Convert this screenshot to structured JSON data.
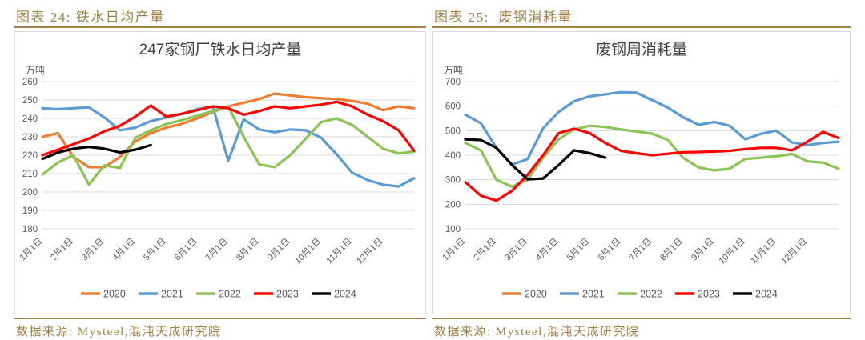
{
  "page": {
    "left_header": "图表 24: 铁水日均产量",
    "right_header": "图表 25:  废钢消耗量",
    "left_source": "数据来源: Mysteel,混沌天成研究院",
    "right_source": "数据来源: Mysteel,混沌天成研究院"
  },
  "colors": {
    "accent_gold": "#A08246",
    "grid": "#D9D9D9",
    "axis_text": "#595959",
    "title_text": "#3F3F3F",
    "panel_border": "#D9D9D9",
    "series_2020": "#ED7D31",
    "series_2021": "#5B9BD5",
    "series_2022": "#8CC355",
    "series_2023": "#FF0000",
    "series_2024": "#000000"
  },
  "chart_data": [
    {
      "type": "line",
      "title": "247家钢厂铁水日均产量",
      "unit_label": "万吨",
      "ylabel": "万吨",
      "ylim": [
        180,
        260
      ],
      "ytick_step": 10,
      "grid": true,
      "legend_position": "bottom",
      "x_tick_labels": [
        "1月1日",
        "2月1日",
        "3月1日",
        "4月1日",
        "5月1日",
        "6月1日",
        "7月1日",
        "8月1日",
        "9月1日",
        "10月1日",
        "11月1日",
        "12月1日"
      ],
      "sampling_note": "values sampled twice monthly Jan1-Dec31 (25 points); 2024 series ends mid-April",
      "series": [
        {
          "name": "2020",
          "color": "#ED7D31",
          "values": [
            230,
            232,
            219,
            213.5,
            213.5,
            219,
            227.5,
            232,
            235,
            237,
            240,
            243.5,
            246.5,
            248.5,
            250.5,
            253.5,
            252.5,
            251.5,
            251,
            250.5,
            249.5,
            248,
            244.5,
            246.5,
            245.5
          ]
        },
        {
          "name": "2021",
          "color": "#5B9BD5",
          "values": [
            245.5,
            245,
            245.5,
            246,
            240.5,
            233.5,
            235,
            238.5,
            240.5,
            242.5,
            245,
            246.5,
            217,
            239.5,
            234,
            232.5,
            234,
            233.5,
            229.5,
            220.5,
            210.5,
            206.5,
            204,
            203,
            207.5
          ]
        },
        {
          "name": "2022",
          "color": "#8CC355",
          "values": [
            209.5,
            216,
            220,
            204,
            214.5,
            213,
            229.5,
            233.5,
            237,
            239,
            241.5,
            244,
            246.5,
            230,
            215,
            213.5,
            220,
            229,
            238,
            240,
            236.5,
            230,
            223.5,
            221,
            222
          ]
        },
        {
          "name": "2023",
          "color": "#FF0000",
          "values": [
            220,
            223,
            226,
            229,
            233,
            236,
            241,
            247,
            241,
            242.5,
            244.5,
            246.5,
            245.5,
            242,
            244,
            246.5,
            245.5,
            246.5,
            247.5,
            249,
            246.5,
            242,
            238.5,
            233.5,
            222.5
          ]
        },
        {
          "name": "2024",
          "color": "#000000",
          "values": [
            218,
            221.5,
            223.5,
            224.5,
            223.5,
            221.5,
            223,
            225.5
          ]
        }
      ]
    },
    {
      "type": "line",
      "title": "废钢周消耗量",
      "unit_label": "万吨",
      "ylabel": "万吨",
      "ylim": [
        100,
        700
      ],
      "ytick_step": 100,
      "grid": true,
      "legend_position": "bottom",
      "x_tick_labels": [
        "1月1日",
        "2月1日",
        "3月1日",
        "4月1日",
        "5月1日",
        "6月1日",
        "7月1日",
        "8月1日",
        "9月1日",
        "10月1日",
        "11月1日",
        "12月1日"
      ],
      "sampling_note": "values sampled twice monthly Jan1-Dec31 (25 points); 2020 line not visible in plot; 2024 series ends mid-May",
      "series": [
        {
          "name": "2020",
          "color": "#ED7D31",
          "values": []
        },
        {
          "name": "2021",
          "color": "#5B9BD5",
          "values": [
            565,
            530,
            430,
            362,
            384,
            510,
            576,
            620,
            640,
            648,
            657,
            655,
            625,
            595,
            555,
            524,
            535,
            520,
            465,
            487,
            500,
            452,
            441,
            450,
            455
          ]
        },
        {
          "name": "2022",
          "color": "#8CC355",
          "values": [
            450,
            420,
            300,
            272,
            300,
            390,
            465,
            505,
            520,
            515,
            505,
            497,
            488,
            463,
            390,
            350,
            338,
            345,
            385,
            390,
            395,
            405,
            375,
            370,
            345
          ]
        },
        {
          "name": "2023",
          "color": "#FF0000",
          "values": [
            290,
            235,
            215,
            255,
            320,
            400,
            490,
            508,
            490,
            450,
            418,
            408,
            400,
            406,
            412,
            413,
            415,
            418,
            425,
            430,
            430,
            420,
            455,
            495,
            470
          ]
        },
        {
          "name": "2024",
          "color": "#000000",
          "values": [
            465,
            462,
            430,
            360,
            302,
            305,
            360,
            420,
            408,
            390
          ]
        }
      ]
    }
  ]
}
